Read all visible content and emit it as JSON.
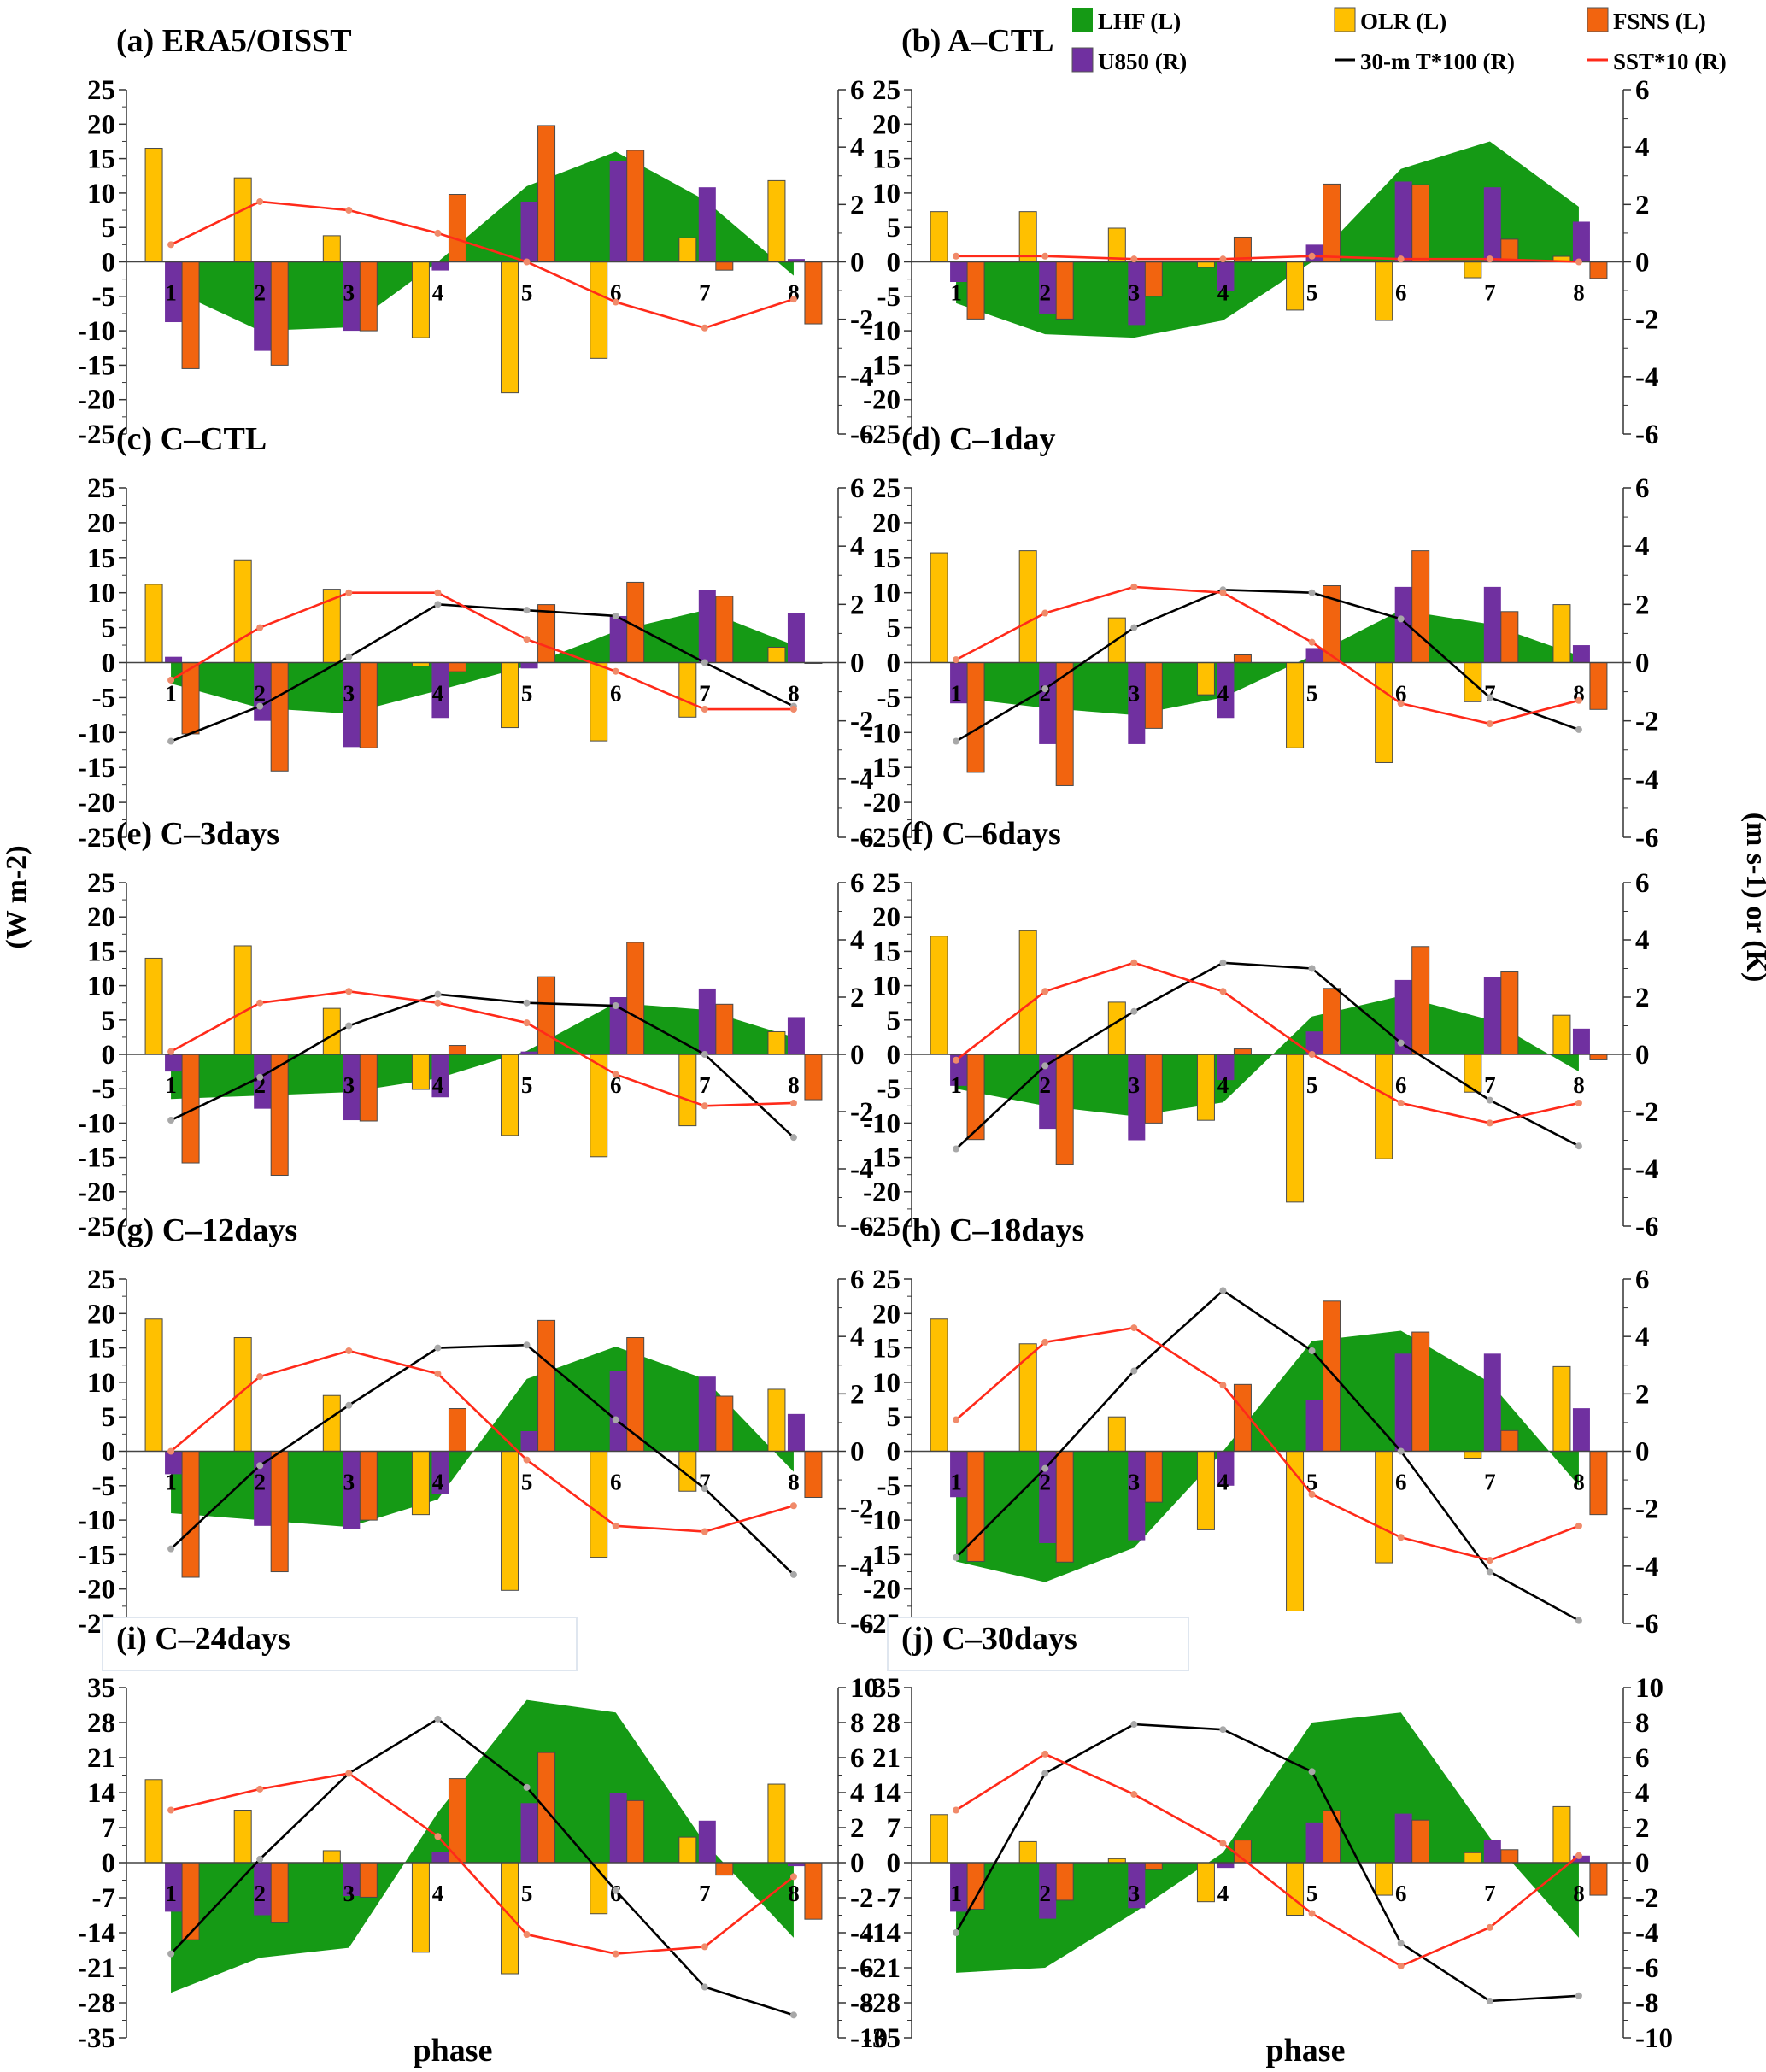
{
  "legend": [
    {
      "key": "LHF",
      "label": "LHF (L)",
      "kind": "area",
      "color": "#159a15"
    },
    {
      "key": "OLR",
      "label": "OLR (L)",
      "kind": "bar",
      "color": "#ffc000"
    },
    {
      "key": "FSNS",
      "label": "FSNS (L)",
      "kind": "bar",
      "color": "#f2640f"
    },
    {
      "key": "U850",
      "label": "U850 (R)",
      "kind": "bar",
      "color": "#7030a0"
    },
    {
      "key": "T30",
      "label": "30-m T*100 (R)",
      "kind": "line",
      "color": "#000000"
    },
    {
      "key": "SST",
      "label": "SST*10 (R)",
      "kind": "line",
      "color": "#ff2a1a"
    }
  ],
  "y_left_label": "(W m-2)",
  "y_right_label": "(m s-1) or (K)",
  "x_label": "phase",
  "chart_data": [
    {
      "id": "a",
      "title": "(a) ERA5/OISST",
      "type": "bar",
      "x": [
        1,
        2,
        3,
        4,
        5,
        6,
        7,
        8
      ],
      "yleft_ticks": [
        25,
        20,
        15,
        10,
        5,
        0,
        -5,
        -10,
        -15,
        -20,
        -25
      ],
      "yright_ticks": [
        6,
        4,
        2,
        0,
        -2,
        -4,
        -6
      ],
      "ylim_left": [
        -25,
        25
      ],
      "ylim_right": [
        -6,
        6
      ],
      "series": {
        "LHF": [
          -4,
          -10,
          -9.5,
          0,
          11,
          16,
          9,
          -2
        ],
        "OLR": [
          16.5,
          12.2,
          3.8,
          -11,
          -19,
          -14,
          3.5,
          11.8
        ],
        "FSNS": [
          -15.5,
          -15,
          -10,
          9.8,
          19.8,
          16.2,
          -1.2,
          -9
        ],
        "U850": [
          -2.1,
          -3.1,
          -2.4,
          -0.3,
          2.1,
          3.5,
          2.6,
          0.1
        ],
        "SST": [
          0.6,
          2.1,
          1.8,
          1,
          0,
          -1.4,
          -2.3,
          -1.3
        ]
      }
    },
    {
      "id": "b",
      "title": "(b) A–CTL",
      "type": "bar",
      "x": [
        1,
        2,
        3,
        4,
        5,
        6,
        7,
        8
      ],
      "yleft_ticks": [
        25,
        20,
        15,
        10,
        5,
        0,
        -5,
        -10,
        -15,
        -20,
        -25
      ],
      "yright_ticks": [
        6,
        4,
        2,
        0,
        -2,
        -4,
        -6
      ],
      "ylim_left": [
        -25,
        25
      ],
      "ylim_right": [
        -6,
        6
      ],
      "series": {
        "LHF": [
          -6,
          -10.5,
          -11,
          -8.5,
          0,
          13.5,
          17.5,
          8
        ],
        "OLR": [
          7.3,
          7.3,
          4.9,
          -0.8,
          -7,
          -8.5,
          -2.3,
          0.8
        ],
        "FSNS": [
          -8.3,
          -8.3,
          -5,
          3.6,
          11.3,
          11.2,
          3.3,
          -2.4
        ],
        "U850": [
          -0.7,
          -1.8,
          -2.2,
          -1.0,
          0.6,
          2.8,
          2.6,
          1.4
        ],
        "SST": [
          0.2,
          0.2,
          0.1,
          0.1,
          0.2,
          0.1,
          0.1,
          0
        ]
      }
    },
    {
      "id": "c",
      "title": "(c) C–CTL",
      "type": "bar",
      "x": [
        1,
        2,
        3,
        4,
        5,
        6,
        7,
        8
      ],
      "yleft_ticks": [
        25,
        20,
        15,
        10,
        5,
        0,
        -5,
        -10,
        -15,
        -20,
        -25
      ],
      "yright_ticks": [
        6,
        4,
        2,
        0,
        -2,
        -4,
        -6
      ],
      "ylim_left": [
        -25,
        25
      ],
      "ylim_right": [
        -6,
        6
      ],
      "series": {
        "LHF": [
          -3,
          -6.5,
          -7.3,
          -4,
          -0.5,
          4.5,
          7.5,
          2.5
        ],
        "OLR": [
          11.2,
          14.7,
          10.5,
          -0.5,
          -9.3,
          -11.2,
          -7.8,
          2.2
        ],
        "FSNS": [
          -10.2,
          -15.5,
          -12.2,
          -1.3,
          8.3,
          11.5,
          9.5,
          0
        ],
        "U850": [
          0.2,
          -2,
          -2.9,
          -1.9,
          -0.2,
          1.6,
          2.5,
          1.7
        ],
        "T30": [
          -2.7,
          -1.5,
          0.2,
          2,
          1.8,
          1.6,
          0,
          -1.5
        ],
        "SST": [
          -0.6,
          1.2,
          2.4,
          2.4,
          0.8,
          -0.3,
          -1.6,
          -1.6
        ]
      }
    },
    {
      "id": "d",
      "title": "(d) C–1day",
      "type": "bar",
      "x": [
        1,
        2,
        3,
        4,
        5,
        6,
        7,
        8
      ],
      "yleft_ticks": [
        25,
        20,
        15,
        10,
        5,
        0,
        -5,
        -10,
        -15,
        -20,
        -25
      ],
      "yright_ticks": [
        6,
        4,
        2,
        0,
        -2,
        -4,
        -6
      ],
      "ylim_left": [
        -25,
        25
      ],
      "ylim_right": [
        -6,
        6
      ],
      "series": {
        "LHF": [
          -5,
          -6.5,
          -7.5,
          -5,
          1,
          7.5,
          5.5,
          1
        ],
        "OLR": [
          15.7,
          16,
          6.4,
          -4.6,
          -12.2,
          -14.3,
          -5.6,
          8.3
        ],
        "FSNS": [
          -15.7,
          -17.6,
          -9.4,
          1.1,
          11,
          16,
          7.3,
          -6.7
        ],
        "U850": [
          -1.4,
          -2.8,
          -2.8,
          -1.9,
          0.5,
          2.6,
          2.6,
          0.6
        ],
        "T30": [
          -2.7,
          -0.9,
          1.2,
          2.5,
          2.4,
          1.5,
          -1.2,
          -2.3
        ],
        "SST": [
          0.1,
          1.7,
          2.6,
          2.4,
          0.7,
          -1.4,
          -2.1,
          -1.3
        ]
      }
    },
    {
      "id": "e",
      "title": "(e) C–3days",
      "type": "bar",
      "x": [
        1,
        2,
        3,
        4,
        5,
        6,
        7,
        8
      ],
      "yleft_ticks": [
        25,
        20,
        15,
        10,
        5,
        0,
        -5,
        -10,
        -15,
        -20,
        -25
      ],
      "yright_ticks": [
        6,
        4,
        2,
        0,
        -2,
        -4,
        -6
      ],
      "ylim_left": [
        -25,
        25
      ],
      "ylim_right": [
        -6,
        6
      ],
      "series": {
        "LHF": [
          -6.5,
          -6,
          -5.5,
          -3.5,
          0.5,
          7.5,
          6.5,
          2.5
        ],
        "OLR": [
          14,
          15.8,
          6.7,
          -5.1,
          -11.8,
          -14.9,
          -10.4,
          3.3
        ],
        "FSNS": [
          -15.8,
          -17.6,
          -9.7,
          1.3,
          11.3,
          16.3,
          7.3,
          -6.6
        ],
        "U850": [
          -0.6,
          -1.9,
          -2.3,
          -1.5,
          0.1,
          2,
          2.3,
          1.3
        ],
        "T30": [
          -2.3,
          -0.8,
          1,
          2.1,
          1.8,
          1.7,
          0,
          -2.9
        ],
        "SST": [
          0.1,
          1.8,
          2.2,
          1.8,
          1.1,
          -0.7,
          -1.8,
          -1.7
        ]
      }
    },
    {
      "id": "f",
      "title": "(f) C–6days",
      "type": "bar",
      "x": [
        1,
        2,
        3,
        4,
        5,
        6,
        7,
        8
      ],
      "yleft_ticks": [
        25,
        20,
        15,
        10,
        5,
        0,
        -5,
        -10,
        -15,
        -20,
        -25
      ],
      "yright_ticks": [
        6,
        4,
        2,
        0,
        -2,
        -4,
        -6
      ],
      "ylim_left": [
        -25,
        25
      ],
      "ylim_right": [
        -6,
        6
      ],
      "series": {
        "LHF": [
          -5,
          -7.5,
          -9,
          -7,
          5.5,
          8.5,
          5,
          -2.5
        ],
        "OLR": [
          17.2,
          18,
          7.6,
          -9.6,
          -21.5,
          -15.2,
          -5.5,
          5.7
        ],
        "FSNS": [
          -12.4,
          -16,
          -10,
          0.8,
          9.6,
          15.7,
          12,
          -0.8
        ],
        "U850": [
          -1.1,
          -2.6,
          -3,
          -0.9,
          0.8,
          2.6,
          2.7,
          0.9
        ],
        "T30": [
          -3.3,
          -0.4,
          1.5,
          3.2,
          3,
          0.4,
          -1.6,
          -3.2
        ],
        "SST": [
          -0.2,
          2.2,
          3.2,
          2.2,
          0,
          -1.7,
          -2.4,
          -1.7
        ]
      }
    },
    {
      "id": "g",
      "title": "(g) C–12days",
      "type": "bar",
      "x": [
        1,
        2,
        3,
        4,
        5,
        6,
        7,
        8
      ],
      "yleft_ticks": [
        25,
        20,
        15,
        10,
        5,
        0,
        -5,
        -10,
        -15,
        -20,
        -25
      ],
      "yright_ticks": [
        6,
        4,
        2,
        0,
        -2,
        -4,
        -6
      ],
      "ylim_left": [
        -25,
        25
      ],
      "ylim_right": [
        -6,
        6
      ],
      "series": {
        "LHF": [
          -9,
          -10,
          -11,
          -7,
          10.5,
          15.2,
          10.5,
          -3
        ],
        "OLR": [
          19.2,
          16.5,
          8.1,
          -9.2,
          -20.2,
          -15.4,
          -5.8,
          9
        ],
        "FSNS": [
          -18.3,
          -17.5,
          -10,
          6.2,
          19,
          16.5,
          8,
          -6.7
        ],
        "U850": [
          -0.8,
          -2.6,
          -2.7,
          -1.5,
          0.7,
          2.8,
          2.6,
          1.3
        ],
        "T30": [
          -3.4,
          -0.5,
          1.6,
          3.6,
          3.7,
          1.1,
          -1.3,
          -4.3
        ],
        "SST": [
          0,
          2.6,
          3.5,
          2.7,
          -0.3,
          -2.6,
          -2.8,
          -1.9
        ]
      }
    },
    {
      "id": "h",
      "title": "(h) C–18days",
      "type": "bar",
      "x": [
        1,
        2,
        3,
        4,
        5,
        6,
        7,
        8
      ],
      "yleft_ticks": [
        25,
        20,
        15,
        10,
        5,
        0,
        -5,
        -10,
        -15,
        -20,
        -25
      ],
      "yright_ticks": [
        6,
        4,
        2,
        0,
        -2,
        -4,
        -6
      ],
      "ylim_left": [
        -25,
        25
      ],
      "ylim_right": [
        -6,
        6
      ],
      "series": {
        "LHF": [
          -16,
          -19,
          -14,
          0,
          16,
          17.5,
          10,
          -5
        ],
        "OLR": [
          19.2,
          15.6,
          5,
          -11.4,
          -23.2,
          -16.2,
          -1,
          12.3
        ],
        "FSNS": [
          -16,
          -16.1,
          -7.4,
          9.7,
          21.8,
          17.3,
          3,
          -9.2
        ],
        "U850": [
          -1.6,
          -3.2,
          -3.1,
          -1.2,
          1.8,
          3.4,
          3.4,
          1.5
        ],
        "T30": [
          -3.7,
          -0.6,
          2.8,
          5.6,
          3.5,
          0,
          -4.2,
          -5.9
        ],
        "SST": [
          1.1,
          3.8,
          4.3,
          2.3,
          -1.5,
          -3,
          -3.8,
          -2.6
        ]
      }
    },
    {
      "id": "i",
      "title": "(i) C–24days",
      "type": "bar",
      "x": [
        1,
        2,
        3,
        4,
        5,
        6,
        7,
        8
      ],
      "yleft_ticks": [
        35,
        28,
        21,
        14,
        7,
        0,
        -7,
        -14,
        -21,
        -28,
        -35
      ],
      "yright_ticks": [
        10,
        8,
        6,
        4,
        2,
        0,
        -2,
        -4,
        -6,
        -8,
        -10
      ],
      "ylim_left": [
        -35,
        35
      ],
      "ylim_right": [
        -10,
        10
      ],
      "series": {
        "LHF": [
          -26,
          -19,
          -17,
          10,
          32.5,
          30,
          4,
          -15
        ],
        "OLR": [
          16.6,
          10.5,
          2.4,
          -17.9,
          -22.2,
          -10.2,
          5.1,
          15.7
        ],
        "FSNS": [
          -15.4,
          -12,
          -6.9,
          16.8,
          22,
          12.4,
          -2.5,
          -11.3
        ],
        "U850": [
          -2.8,
          -3,
          -1.9,
          0.6,
          3.4,
          4,
          2.4,
          -0.2
        ],
        "T30": [
          -5.2,
          0.2,
          5.1,
          8.2,
          4.3,
          -1.6,
          -7.1,
          -8.7
        ],
        "SST": [
          3,
          4.2,
          5.1,
          1.5,
          -4.1,
          -5.2,
          -4.8,
          -0.8
        ]
      }
    },
    {
      "id": "j",
      "title": "(j) C–30days",
      "type": "bar",
      "x": [
        1,
        2,
        3,
        4,
        5,
        6,
        7,
        8
      ],
      "yleft_ticks": [
        35,
        28,
        21,
        14,
        7,
        0,
        -7,
        -14,
        -21,
        -28,
        -35
      ],
      "yright_ticks": [
        10,
        8,
        6,
        4,
        2,
        0,
        -2,
        -4,
        -6,
        -8,
        -10
      ],
      "ylim_left": [
        -35,
        35
      ],
      "ylim_right": [
        -10,
        10
      ],
      "series": {
        "LHF": [
          -22,
          -21,
          -10,
          2,
          28,
          30,
          5,
          -15
        ],
        "OLR": [
          9.6,
          4.2,
          0.8,
          -7.8,
          -10.5,
          -6.5,
          2,
          11.2
        ],
        "FSNS": [
          -9.3,
          -7.5,
          -1.4,
          4.5,
          10.4,
          8.5,
          2.6,
          -6.5
        ],
        "U850": [
          -2.8,
          -3.2,
          -2.6,
          -0.3,
          2.3,
          2.8,
          1.3,
          0.4
        ],
        "T30": [
          -4,
          5.1,
          7.9,
          7.6,
          5.2,
          -4.6,
          -7.9,
          -7.6
        ],
        "SST": [
          3,
          6.2,
          3.9,
          1.1,
          -2.9,
          -5.9,
          -3.7,
          0.4
        ]
      }
    }
  ]
}
